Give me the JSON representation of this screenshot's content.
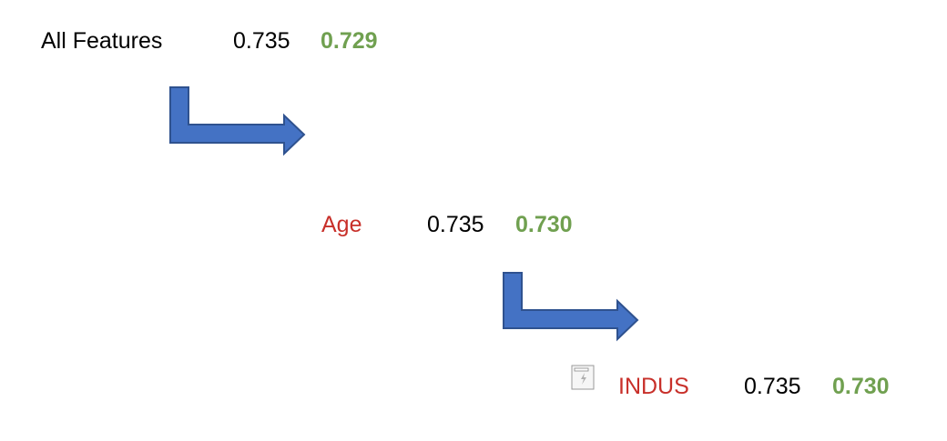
{
  "colors": {
    "arrow_fill": "#4472c4",
    "arrow_stroke": "#2f528f",
    "highlight_green": "#70a050",
    "removed_red": "#c8302a"
  },
  "steps": [
    {
      "label": "All Features",
      "score_a": "0.735",
      "score_b": "0.729"
    },
    {
      "label": "Age",
      "score_a": "0.735",
      "score_b": "0.730"
    },
    {
      "label": "INDUS",
      "score_a": "0.735",
      "score_b": "0.730"
    }
  ],
  "arrows": [
    "bent-arrow",
    "bent-arrow"
  ],
  "placeholder_icon": "broken-image-icon"
}
